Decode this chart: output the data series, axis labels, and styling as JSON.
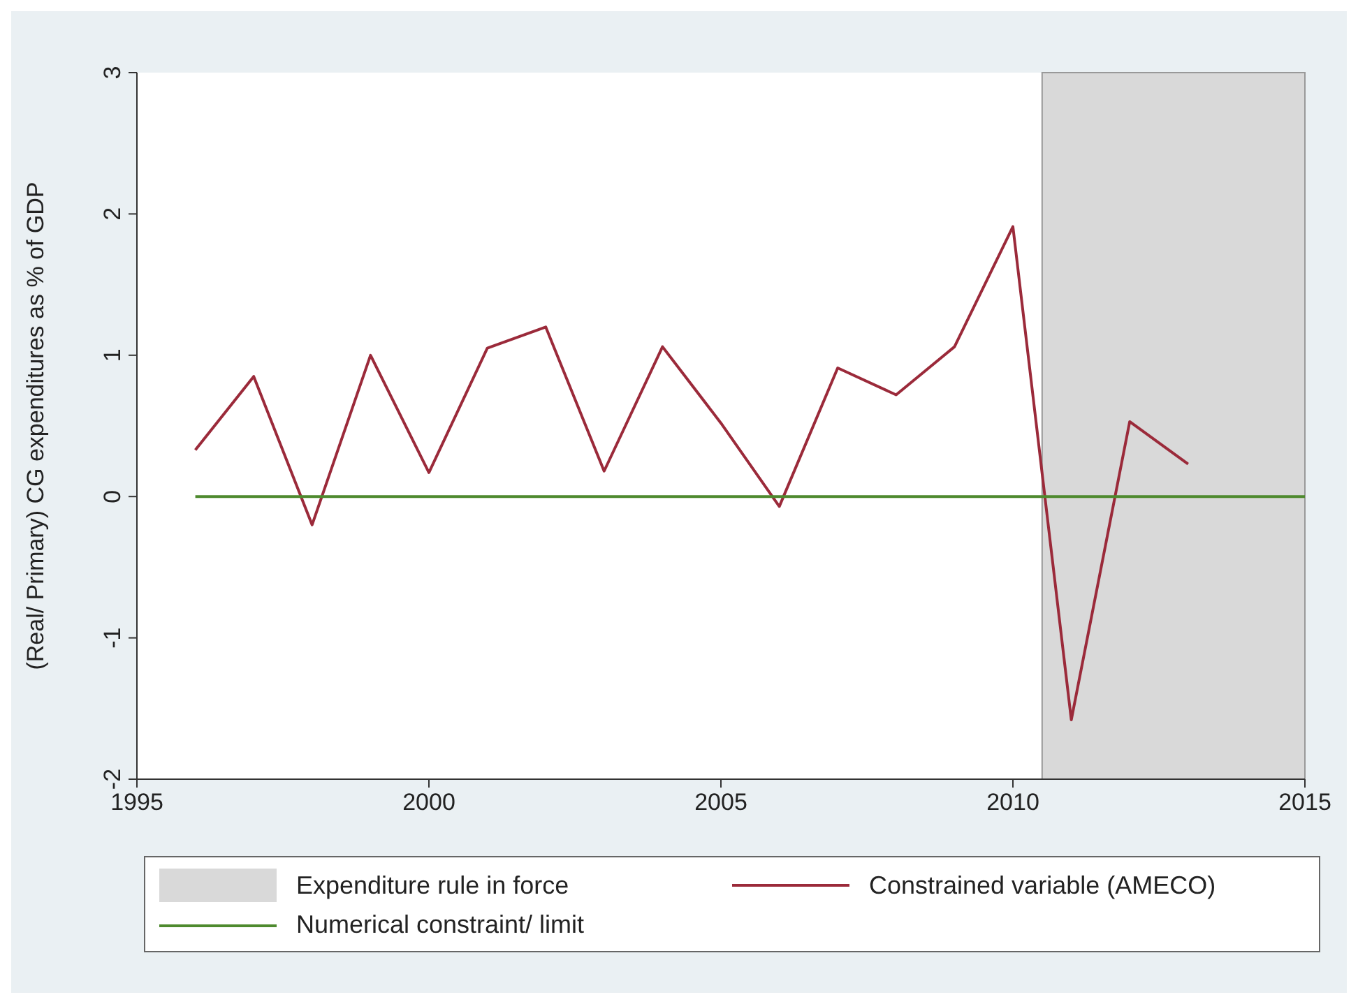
{
  "chart_data": {
    "type": "line",
    "ylabel": "(Real/ Primary) CG expenditures as % of GDP",
    "xlim": [
      1995,
      2015
    ],
    "xticks": [
      1995,
      2000,
      2005,
      2010,
      2015
    ],
    "ylim": [
      -2,
      3
    ],
    "yticks": [
      -2,
      -1,
      0,
      1,
      2,
      3
    ],
    "grid": false,
    "legend": "bottom",
    "marker": "none",
    "bands": [
      {
        "axis": "x",
        "from": 2010.5,
        "to": 2015,
        "label": "Expenditure rule in force",
        "color": "#d9d9d9"
      }
    ],
    "series": [
      {
        "name": "Constrained variable (AMECO)",
        "color": "#9b2a3a",
        "x": [
          1996,
          1997,
          1998,
          1999,
          2000,
          2001,
          2002,
          2003,
          2004,
          2005,
          2006,
          2007,
          2008,
          2009,
          2010,
          2011,
          2012,
          2013
        ],
        "values": [
          0.33,
          0.85,
          -0.2,
          1.0,
          0.17,
          1.05,
          1.2,
          0.18,
          1.06,
          0.52,
          -0.07,
          0.91,
          0.72,
          1.06,
          1.91,
          -1.58,
          0.53,
          0.23
        ]
      },
      {
        "name": "Numerical constraint/ limit",
        "color": "#4e8a2e",
        "x": [
          1996,
          2015
        ],
        "values": [
          0,
          0
        ]
      }
    ]
  }
}
